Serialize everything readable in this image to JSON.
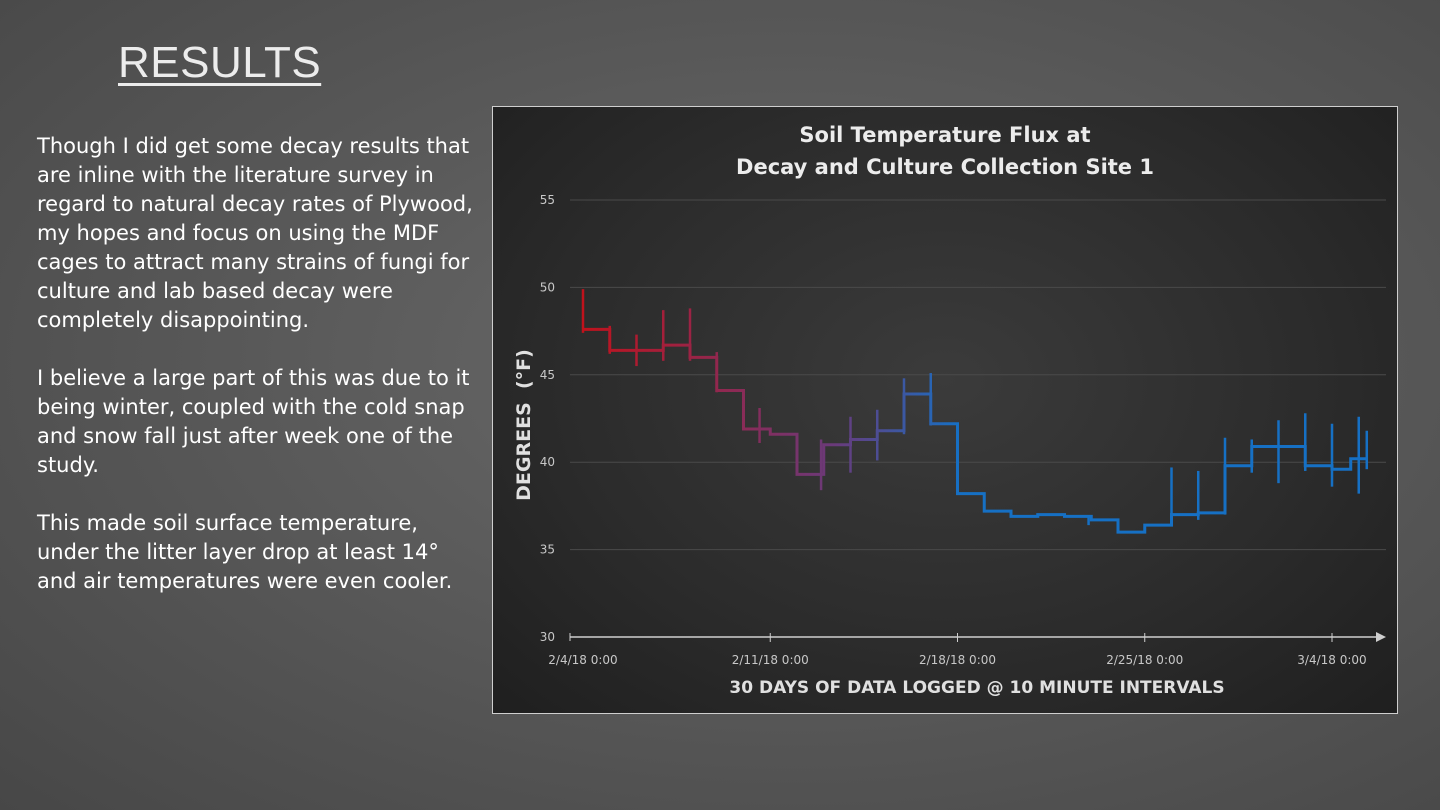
{
  "slide": {
    "title": "RESULTS",
    "paragraphs": [
      "Though I did get some decay results that are inline with the literature survey in regard to natural decay rates of Plywood, my hopes and focus on using the MDF cages to attract many strains of fungi for culture and lab based decay were completely disappointing.",
      "I believe a large part of this was due to it being winter, coupled with the cold snap and snow fall just after week one of the study.",
      "This made soil surface temperature, under the litter layer drop at least 14° and air temperatures were even cooler."
    ]
  },
  "chart_data": {
    "type": "line",
    "title_lines": [
      "Soil Temperature Flux at",
      "Decay and Culture Collection Site 1"
    ],
    "xlabel": "30 DAYS OF DATA LOGGED @ 10 MINUTE INTERVALS",
    "ylabel": "DEGREES  (°F)",
    "ylim": [
      30,
      55
    ],
    "yticks": [
      30,
      35,
      40,
      45,
      50,
      55
    ],
    "xlim": [
      0,
      29.3
    ],
    "xticks": [
      {
        "day": 0,
        "label": "2/4/18 0:00"
      },
      {
        "day": 7,
        "label": "2/11/18 0:00"
      },
      {
        "day": 14,
        "label": "2/18/18 0:00"
      },
      {
        "day": 21,
        "label": "2/25/18 0:00"
      },
      {
        "day": 28,
        "label": "3/4/18 0:00"
      }
    ],
    "grid": true,
    "color_start": "#c0121c",
    "color_mid": "#6a3a7a",
    "color_end": "#1670c4",
    "series": [
      {
        "steps": [
          [
            0.0,
            47.6
          ],
          [
            1.0,
            46.4
          ],
          [
            2.0,
            46.4
          ],
          [
            3.0,
            46.7
          ],
          [
            4.0,
            46.0
          ],
          [
            5.0,
            44.1
          ],
          [
            6.0,
            41.9
          ],
          [
            7.0,
            41.6
          ],
          [
            8.0,
            39.3
          ],
          [
            9.0,
            41.0
          ],
          [
            10.0,
            41.3
          ],
          [
            11.0,
            41.8
          ],
          [
            12.0,
            43.9
          ],
          [
            13.0,
            42.2
          ],
          [
            14.0,
            38.2
          ],
          [
            15.0,
            37.2
          ],
          [
            16.0,
            36.9
          ],
          [
            17.0,
            37.0
          ],
          [
            18.0,
            36.9
          ],
          [
            19.0,
            36.7
          ],
          [
            20.0,
            36.0
          ],
          [
            21.0,
            36.4
          ],
          [
            22.0,
            37.0
          ],
          [
            23.0,
            37.1
          ],
          [
            24.0,
            39.8
          ],
          [
            25.0,
            40.9
          ],
          [
            26.0,
            40.9
          ],
          [
            27.0,
            39.8
          ],
          [
            28.0,
            39.6
          ],
          [
            28.7,
            40.2
          ]
        ],
        "end_x": 29.3,
        "spikes": [
          [
            0.0,
            47.4,
            49.9
          ],
          [
            1.0,
            46.2,
            47.8
          ],
          [
            2.0,
            45.5,
            47.3
          ],
          [
            3.0,
            45.8,
            48.7
          ],
          [
            4.0,
            45.8,
            48.8
          ],
          [
            5.0,
            44.0,
            46.3
          ],
          [
            6.6,
            41.1,
            43.1
          ],
          [
            8.9,
            38.4,
            41.3
          ],
          [
            10.0,
            39.4,
            42.6
          ],
          [
            11.0,
            40.1,
            43.0
          ],
          [
            12.0,
            41.6,
            44.8
          ],
          [
            13.0,
            42.1,
            45.1
          ],
          [
            18.9,
            36.4,
            36.9
          ],
          [
            22.0,
            36.8,
            39.7
          ],
          [
            23.0,
            36.7,
            39.5
          ],
          [
            24.0,
            37.0,
            41.4
          ],
          [
            25.0,
            39.4,
            41.3
          ],
          [
            26.0,
            38.8,
            42.4
          ],
          [
            27.0,
            39.5,
            42.8
          ],
          [
            28.0,
            38.6,
            42.2
          ],
          [
            29.0,
            38.2,
            42.6
          ],
          [
            29.3,
            39.6,
            41.8
          ]
        ]
      }
    ]
  }
}
